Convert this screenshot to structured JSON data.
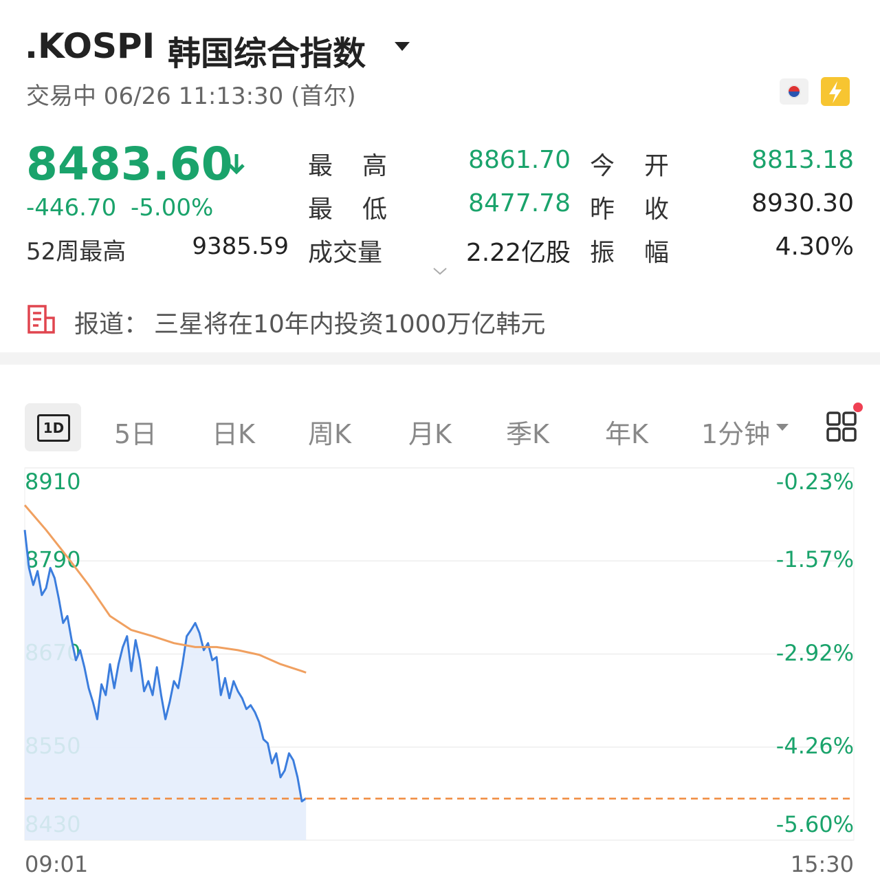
{
  "header": {
    "symbol": ".KOSPI",
    "name": "韩国综合指数",
    "status": "交易中 06/26 11:13:30 (首尔)"
  },
  "quote": {
    "price": "8483.60",
    "change": "-446.70",
    "change_pct": "-5.00%",
    "stats": [
      {
        "label": "最高",
        "value": "8861.70",
        "color": "#1aa36b"
      },
      {
        "label": "今开",
        "value": "8813.18",
        "color": "#1aa36b"
      },
      {
        "label": "最低",
        "value": "8477.78",
        "color": "#1aa36b"
      },
      {
        "label": "昨收",
        "value": "8930.30",
        "color": "#222222"
      },
      {
        "label": "成交量",
        "value": "2.22亿股",
        "color": "#222222"
      },
      {
        "label": "振幅",
        "value": "4.30%",
        "color": "#222222"
      }
    ],
    "week52_label": "52周最高",
    "week52_value": "9385.59"
  },
  "news": {
    "prefix": "报道：",
    "text": "三星将在10年内投资1000万亿韩元"
  },
  "tabs": [
    "1D",
    "5日",
    "日K",
    "周K",
    "月K",
    "季K",
    "年K",
    "1分钟"
  ],
  "chart_data": {
    "type": "line",
    "xticks": [
      "09:01",
      "15:30"
    ],
    "ylim": [
      8430,
      8910
    ],
    "yticks": [
      8910,
      8790,
      8670,
      8550,
      8430
    ],
    "y2lim": [
      -5.6,
      -0.23
    ],
    "y2ticks": [
      {
        "value": -0.23,
        "label": "-0.23%"
      },
      {
        "value": -1.57,
        "label": "-1.57%"
      },
      {
        "value": -2.92,
        "label": "-2.92%"
      },
      {
        "value": -4.26,
        "label": "-4.26%"
      },
      {
        "value": -5.6,
        "label": "-5.60%"
      }
    ],
    "grid": true,
    "price_line": 8483.6,
    "price_line_color": "#f08a3c",
    "series": [
      {
        "color": "#3b7ddd",
        "fill": "#e4edfc",
        "x": [
          "09:01",
          "09:03",
          "09:05",
          "09:07",
          "09:09",
          "09:11",
          "09:13",
          "09:15",
          "09:17",
          "09:19",
          "09:21",
          "09:23",
          "09:25",
          "09:27",
          "09:29",
          "09:31",
          "09:33",
          "09:35",
          "09:37",
          "09:39",
          "09:41",
          "09:43",
          "09:45",
          "09:47",
          "09:49",
          "09:51",
          "09:53",
          "09:55",
          "09:57",
          "09:59",
          "10:01",
          "10:03",
          "10:05",
          "10:07",
          "10:09",
          "10:11",
          "10:13",
          "10:15",
          "10:17",
          "10:19",
          "10:21",
          "10:23",
          "10:25",
          "10:27",
          "10:29",
          "10:31",
          "10:33",
          "10:35",
          "10:37",
          "10:39",
          "10:41",
          "10:43",
          "10:45",
          "10:47",
          "10:49",
          "10:51",
          "10:53",
          "10:55",
          "10:57",
          "10:59",
          "11:01",
          "11:03",
          "11:05",
          "11:07",
          "11:09",
          "11:11",
          "11:13"
        ],
        "values": [
          8830,
          8781,
          8759,
          8777,
          8746,
          8755,
          8781,
          8768,
          8741,
          8710,
          8719,
          8688,
          8662,
          8675,
          8653,
          8626,
          8608,
          8586,
          8631,
          8617,
          8657,
          8626,
          8657,
          8679,
          8693,
          8648,
          8688,
          8662,
          8622,
          8635,
          8617,
          8653,
          8617,
          8586,
          8608,
          8635,
          8626,
          8657,
          8693,
          8701,
          8710,
          8697,
          8675,
          8684,
          8662,
          8666,
          8617,
          8639,
          8613,
          8635,
          8622,
          8613,
          8599,
          8604,
          8595,
          8582,
          8560,
          8555,
          8529,
          8542,
          8511,
          8520,
          8542,
          8533,
          8511,
          8480,
          8484
        ]
      },
      {
        "color": "#f0a060",
        "x": [
          "09:01",
          "09:11",
          "09:21",
          "09:31",
          "09:41",
          "09:51",
          "10:01",
          "10:11",
          "10:21",
          "10:31",
          "10:41",
          "10:51",
          "11:01",
          "11:11",
          "11:13"
        ],
        "values": [
          8862,
          8830,
          8795,
          8759,
          8719,
          8701,
          8693,
          8684,
          8679,
          8679,
          8675,
          8669,
          8657,
          8648,
          8646
        ]
      }
    ]
  }
}
